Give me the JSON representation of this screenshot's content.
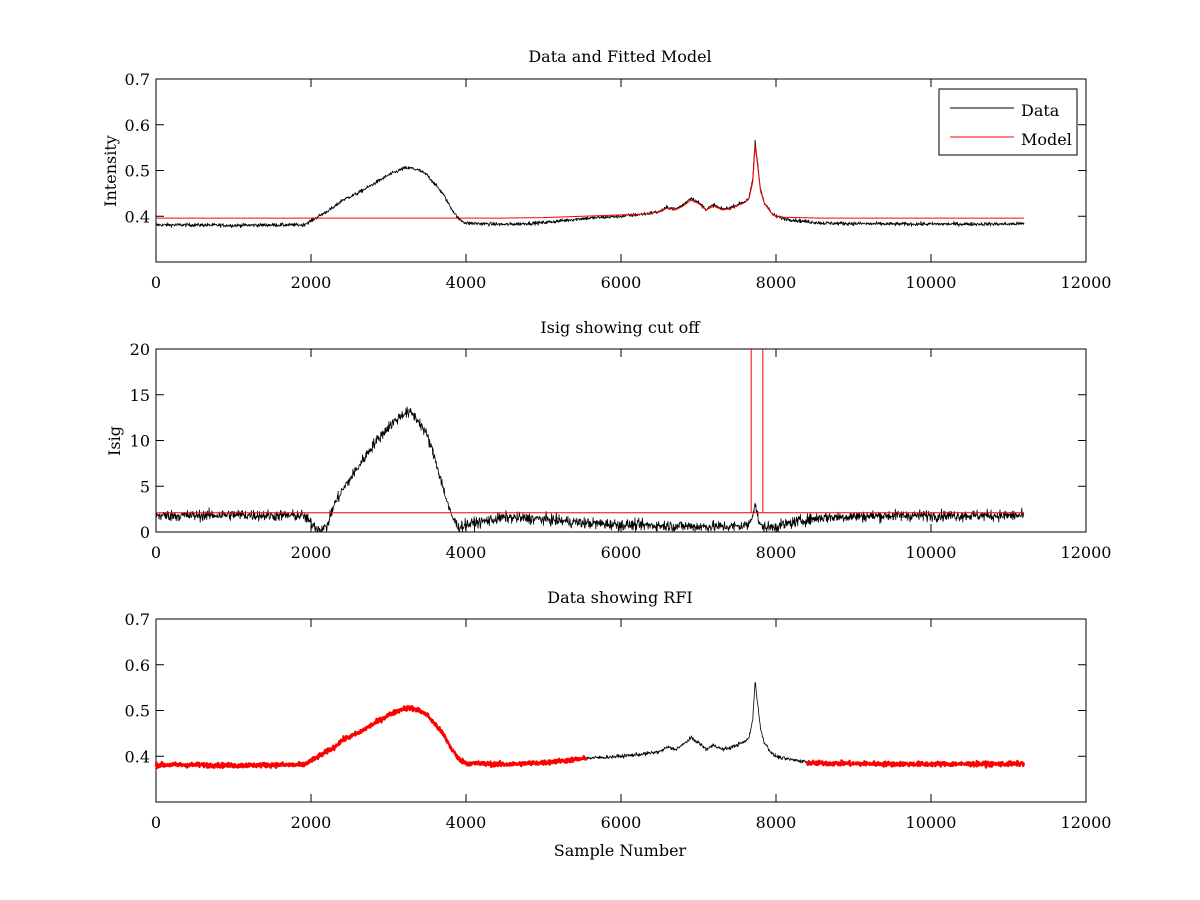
{
  "figure": {
    "background": "#ffffff"
  },
  "chart_data": [
    {
      "type": "line",
      "title": "Data and Fitted Model",
      "xlabel": "",
      "ylabel": "Intensity",
      "xlim": [
        0,
        12000
      ],
      "ylim": [
        0.3,
        0.7
      ],
      "xticks": [
        0,
        2000,
        4000,
        6000,
        8000,
        10000,
        12000
      ],
      "xtick_labels": [
        "0",
        "2000",
        "4000",
        "6000",
        "8000",
        "10000",
        "12000"
      ],
      "yticks": [
        0.4,
        0.5,
        0.6,
        0.7
      ],
      "ytick_labels": [
        "0.4",
        "0.5",
        "0.6",
        "0.7"
      ],
      "grid": false,
      "legend": {
        "placement": "top-right",
        "entries": [
          "Data",
          "Model"
        ]
      },
      "series": [
        {
          "name": "Data",
          "color": "#000000",
          "style": "noisy",
          "noise": 0.004,
          "x": [
            0,
            500,
            1000,
            1500,
            1900,
            2000,
            2100,
            2200,
            2300,
            2400,
            2600,
            2800,
            3000,
            3200,
            3300,
            3400,
            3500,
            3600,
            3700,
            3800,
            3900,
            4000,
            4500,
            5000,
            5500,
            6000,
            6300,
            6500,
            6600,
            6700,
            6800,
            6900,
            7000,
            7100,
            7200,
            7300,
            7400,
            7500,
            7600,
            7650,
            7700,
            7730,
            7760,
            7800,
            7850,
            7900,
            7950,
            8000,
            8100,
            8300,
            8600,
            9000,
            9500,
            10000,
            10500,
            11000,
            11200
          ],
          "y": [
            0.381,
            0.381,
            0.38,
            0.381,
            0.381,
            0.39,
            0.4,
            0.41,
            0.42,
            0.435,
            0.45,
            0.47,
            0.49,
            0.505,
            0.505,
            0.5,
            0.49,
            0.47,
            0.45,
            0.42,
            0.395,
            0.385,
            0.382,
            0.386,
            0.395,
            0.4,
            0.405,
            0.41,
            0.42,
            0.415,
            0.425,
            0.44,
            0.43,
            0.415,
            0.425,
            0.415,
            0.418,
            0.425,
            0.432,
            0.44,
            0.48,
            0.565,
            0.52,
            0.46,
            0.43,
            0.418,
            0.405,
            0.4,
            0.395,
            0.39,
            0.385,
            0.384,
            0.383,
            0.383,
            0.383,
            0.383,
            0.384
          ]
        },
        {
          "name": "Model",
          "color": "#ff0000",
          "style": "line",
          "x": [
            0,
            4500,
            5000,
            5500,
            6000,
            6300,
            6500,
            6600,
            6700,
            6800,
            6900,
            7000,
            7100,
            7200,
            7300,
            7400,
            7500,
            7600,
            7650,
            7700,
            7730,
            7760,
            7800,
            7850,
            7900,
            7950,
            8000,
            8100,
            8300,
            8600,
            9000,
            11200
          ],
          "y": [
            0.396,
            0.396,
            0.397,
            0.4,
            0.403,
            0.405,
            0.41,
            0.418,
            0.414,
            0.422,
            0.435,
            0.428,
            0.414,
            0.422,
            0.414,
            0.416,
            0.423,
            0.43,
            0.438,
            0.475,
            0.555,
            0.515,
            0.455,
            0.428,
            0.416,
            0.405,
            0.401,
            0.398,
            0.397,
            0.396,
            0.396,
            0.396
          ]
        }
      ]
    },
    {
      "type": "line",
      "title": "Isig showing cut off",
      "xlabel": "",
      "ylabel": "Isig",
      "xlim": [
        0,
        12000
      ],
      "ylim": [
        0,
        20
      ],
      "xticks": [
        0,
        2000,
        4000,
        6000,
        8000,
        10000,
        12000
      ],
      "xtick_labels": [
        "0",
        "2000",
        "4000",
        "6000",
        "8000",
        "10000",
        "12000"
      ],
      "yticks": [
        0,
        5,
        10,
        15,
        20
      ],
      "ytick_labels": [
        "0",
        "5",
        "10",
        "15",
        "20"
      ],
      "grid": false,
      "series": [
        {
          "color": "#000000",
          "style": "noisy",
          "noise": 0.6,
          "x": [
            0,
            500,
            1000,
            1500,
            1900,
            2000,
            2100,
            2200,
            2300,
            2400,
            2600,
            2800,
            3000,
            3200,
            3300,
            3400,
            3500,
            3600,
            3700,
            3800,
            3900,
            4000,
            4500,
            5000,
            5500,
            6000,
            6500,
            7000,
            7500,
            7650,
            7700,
            7730,
            7760,
            7800,
            7900,
            8000,
            8300,
            8600,
            9000,
            9500,
            10000,
            10500,
            11000,
            11200
          ],
          "y": [
            1.8,
            1.8,
            1.9,
            1.8,
            1.8,
            1.0,
            0.3,
            0.5,
            3.0,
            4.5,
            7.0,
            9.5,
            11.5,
            13.0,
            13.0,
            12.0,
            10.5,
            8.0,
            5.0,
            2.0,
            0.5,
            0.8,
            1.6,
            1.4,
            1.0,
            0.8,
            0.7,
            0.6,
            0.6,
            0.8,
            2.0,
            3.2,
            1.8,
            0.6,
            0.5,
            0.6,
            1.2,
            1.6,
            1.7,
            1.8,
            1.8,
            1.8,
            1.8,
            1.8
          ]
        },
        {
          "color": "#ff0000",
          "style": "line",
          "x": [
            0,
            7680,
            7680,
            7680,
            7830,
            7830,
            7830,
            11200
          ],
          "y": [
            2.1,
            2.1,
            20,
            2.1,
            2.1,
            20,
            2.1,
            2.1
          ]
        }
      ]
    },
    {
      "type": "line",
      "title": "Data showing RFI",
      "xlabel": "Sample Number",
      "ylabel": "",
      "xlim": [
        0,
        12000
      ],
      "ylim": [
        0.3,
        0.7
      ],
      "xticks": [
        0,
        2000,
        4000,
        6000,
        8000,
        10000,
        12000
      ],
      "xtick_labels": [
        "0",
        "2000",
        "4000",
        "6000",
        "8000",
        "10000",
        "12000"
      ],
      "yticks": [
        0.4,
        0.5,
        0.6,
        0.7
      ],
      "ytick_labels": [
        "0.4",
        "0.5",
        "0.6",
        "0.7"
      ],
      "grid": false,
      "series": [
        {
          "color": "#000000",
          "style": "noisy",
          "noise": 0.004,
          "x": [
            0,
            500,
            1000,
            1500,
            1900,
            2000,
            2100,
            2200,
            2300,
            2400,
            2600,
            2800,
            3000,
            3200,
            3300,
            3400,
            3500,
            3600,
            3700,
            3800,
            3900,
            4000,
            4500,
            5000,
            5500,
            6000,
            6300,
            6500,
            6600,
            6700,
            6800,
            6900,
            7000,
            7100,
            7200,
            7300,
            7400,
            7500,
            7600,
            7650,
            7700,
            7730,
            7760,
            7800,
            7850,
            7900,
            7950,
            8000,
            8100,
            8300,
            8600,
            9000,
            9500,
            10000,
            10500,
            11000,
            11200
          ],
          "y": [
            0.381,
            0.381,
            0.38,
            0.381,
            0.381,
            0.39,
            0.4,
            0.41,
            0.42,
            0.435,
            0.45,
            0.47,
            0.49,
            0.505,
            0.505,
            0.5,
            0.49,
            0.47,
            0.45,
            0.42,
            0.395,
            0.385,
            0.382,
            0.386,
            0.395,
            0.4,
            0.405,
            0.41,
            0.42,
            0.415,
            0.425,
            0.44,
            0.43,
            0.415,
            0.425,
            0.415,
            0.418,
            0.425,
            0.432,
            0.44,
            0.48,
            0.565,
            0.52,
            0.46,
            0.43,
            0.418,
            0.405,
            0.4,
            0.395,
            0.39,
            0.385,
            0.384,
            0.383,
            0.383,
            0.383,
            0.383,
            0.384
          ]
        },
        {
          "color": "#ff0000",
          "style": "noisy-thick",
          "noise": 0.005,
          "x": [
            0,
            500,
            1000,
            1500,
            1900,
            2000,
            2100,
            2200,
            2300,
            2400,
            2600,
            2800,
            3000,
            3200,
            3300,
            3400,
            3500,
            3600,
            3700,
            3800,
            3900,
            4000,
            4500,
            5000,
            5550
          ],
          "y": [
            0.381,
            0.381,
            0.38,
            0.381,
            0.381,
            0.39,
            0.4,
            0.41,
            0.42,
            0.435,
            0.45,
            0.47,
            0.49,
            0.505,
            0.505,
            0.5,
            0.49,
            0.47,
            0.45,
            0.42,
            0.395,
            0.385,
            0.382,
            0.386,
            0.395
          ]
        },
        {
          "color": "#ff0000",
          "style": "noisy-thick",
          "noise": 0.005,
          "x": [
            8400,
            9000,
            9500,
            10000,
            10500,
            11000,
            11200
          ],
          "y": [
            0.385,
            0.384,
            0.383,
            0.383,
            0.383,
            0.383,
            0.384
          ]
        }
      ]
    }
  ]
}
